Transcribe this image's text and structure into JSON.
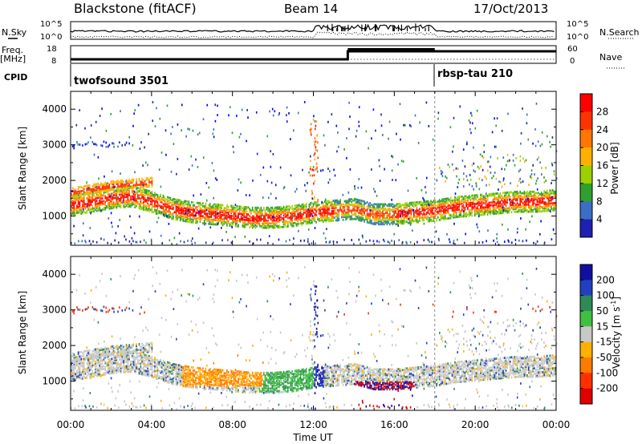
{
  "header": {
    "station": "Blackstone (fitACF)",
    "beam": "Beam 14",
    "date": "17/Oct/2013"
  },
  "top_panels": {
    "nsky_label": "N.Sky",
    "nsearch_label": "N.Search",
    "freq_label_1": "Freq.",
    "freq_label_2": "[MHz]",
    "nave_label": "Nave",
    "cpid_label": "CPID",
    "noise_ticks": [
      "10^5",
      "10^0"
    ],
    "freq_ticks": [
      "18",
      "8"
    ],
    "nave_ticks": [
      "60",
      "0"
    ],
    "cpid_1": "twofsound 3501",
    "cpid_2": "rbsp-tau 210"
  },
  "chart_data": [
    {
      "type": "heatmap",
      "title": "Power",
      "ylabel": "Slant Range [km]",
      "xlabel": "",
      "ylim": [
        180,
        4500
      ],
      "xlim_hours": [
        0,
        24
      ],
      "yticks": [
        "4000",
        "3000",
        "2000",
        "1000"
      ],
      "xticks": [
        "00:00",
        "04:00",
        "08:00",
        "12:00",
        "16:00",
        "20:00",
        "00:00"
      ],
      "colorbar_label": "Power [dB]",
      "colorbar_ticks": [
        "28",
        "24",
        "20",
        "16",
        "12",
        "8",
        "4"
      ],
      "colorbar_colors": [
        "#ff0000",
        "#ff3300",
        "#ff7700",
        "#ffb000",
        "#9dd000",
        "#2ea02e",
        "#3c6fc4",
        "#2020b0",
        "#0000ff"
      ],
      "layers": [
        {
          "name": "main",
          "points": [
            [
              0,
              1300
            ],
            [
              1,
              1400
            ],
            [
              2,
              1500
            ],
            [
              3,
              1550
            ],
            [
              4,
              1400
            ],
            [
              5,
              1200
            ],
            [
              6,
              1100
            ],
            [
              7,
              1050
            ],
            [
              8,
              1000
            ],
            [
              9,
              950
            ],
            [
              10,
              950
            ],
            [
              11,
              1000
            ],
            [
              12,
              1100
            ],
            [
              13,
              1150
            ],
            [
              14,
              1200
            ],
            [
              15,
              1050
            ],
            [
              16,
              1050
            ],
            [
              17,
              1100
            ],
            [
              18,
              1150
            ],
            [
              19,
              1250
            ],
            [
              20,
              1300
            ],
            [
              21,
              1350
            ],
            [
              22,
              1400
            ],
            [
              23,
              1400
            ],
            [
              24,
              1450
            ]
          ]
        },
        {
          "name": "upper",
          "points": [
            [
              0,
              1650
            ],
            [
              1,
              1750
            ],
            [
              2,
              1850
            ],
            [
              3,
              1900
            ],
            [
              4,
              1950
            ]
          ]
        },
        {
          "name": "far",
          "points": [
            [
              0,
              3000
            ],
            [
              1,
              3050
            ],
            [
              2,
              3000
            ],
            [
              3,
              3000
            ]
          ]
        },
        {
          "name": "spike",
          "points": [
            [
              11.8,
              1200
            ],
            [
              12,
              2000
            ],
            [
              12.1,
              3000
            ],
            [
              12.2,
              3800
            ]
          ]
        }
      ]
    },
    {
      "type": "heatmap",
      "title": "Velocity",
      "ylabel": "Slant Range [km]",
      "xlabel": "Time UT",
      "ylim": [
        180,
        4500
      ],
      "xlim_hours": [
        0,
        24
      ],
      "yticks": [
        "4000",
        "3000",
        "2000",
        "1000"
      ],
      "xticks": [
        "00:00",
        "04:00",
        "08:00",
        "12:00",
        "16:00",
        "20:00",
        "00:00"
      ],
      "colorbar_label": "Velocity [m s^-1]",
      "colorbar_ticks": [
        "200",
        "100",
        "50",
        "15",
        "-15",
        "-50",
        "-100",
        "-200"
      ],
      "colorbar_colors": [
        "#1010a0",
        "#2040c0",
        "#2e8b57",
        "#40c040",
        "#c8c8c8",
        "#ffb000",
        "#ff7a00",
        "#ff3000",
        "#e00000"
      ]
    }
  ]
}
